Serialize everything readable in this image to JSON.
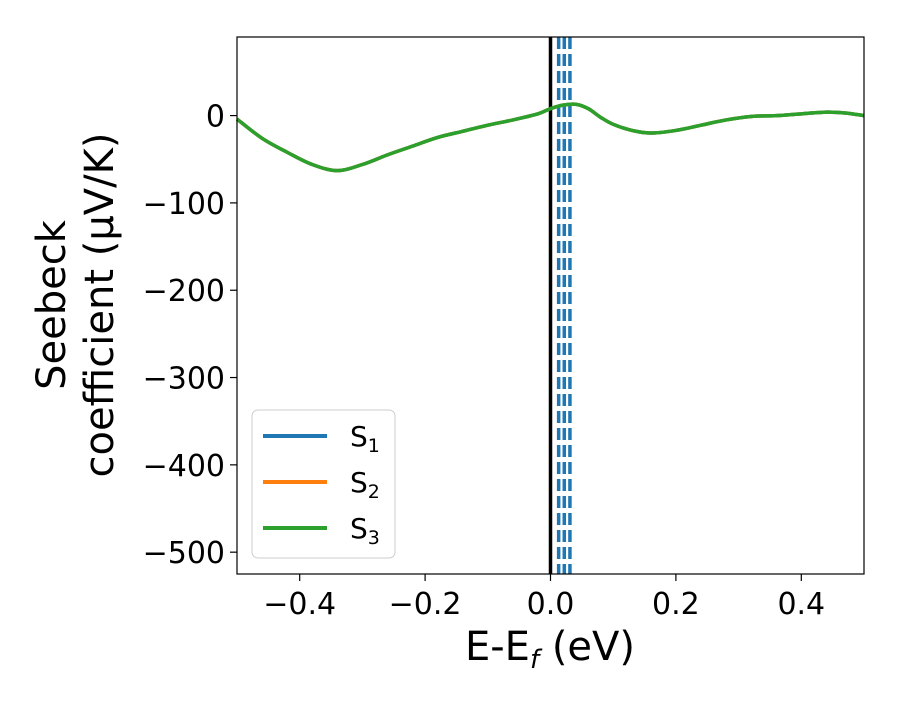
{
  "chart_data": {
    "type": "line",
    "title": "",
    "xlabel": "E-E",
    "xlabel_sub": "f",
    "xlabel_unit": " (eV)",
    "ylabel_line1": "Seebeck",
    "ylabel_line2": "coefficient  (μV/K)",
    "xlim": [
      -0.5,
      0.5
    ],
    "ylim": [
      -525,
      90
    ],
    "xticks": [
      -0.4,
      -0.2,
      0.0,
      0.2,
      0.4
    ],
    "xtick_labels": [
      "−0.4",
      "−0.2",
      "0.0",
      "0.2",
      "0.4"
    ],
    "yticks": [
      0,
      -100,
      -200,
      -300,
      -400,
      -500
    ],
    "ytick_labels": [
      "0",
      "−100",
      "−200",
      "−300",
      "−400",
      "−500"
    ],
    "grid": false,
    "legend_position": "lower-left",
    "fermi_line": {
      "x": 0.0,
      "color": "#000000"
    },
    "dashed_lines": {
      "x": [
        0.013,
        0.022,
        0.031
      ],
      "color": "#1f77b4"
    },
    "series": [
      {
        "name": "S",
        "sub": "1",
        "color": "#1f77b4",
        "x": [
          -0.5,
          -0.46,
          -0.42,
          -0.38,
          -0.34,
          -0.3,
          -0.26,
          -0.22,
          -0.18,
          -0.14,
          -0.1,
          -0.06,
          -0.02,
          0.0,
          0.02,
          0.04,
          0.06,
          0.08,
          0.1,
          0.13,
          0.16,
          0.2,
          0.24,
          0.28,
          0.32,
          0.36,
          0.4,
          0.44,
          0.47,
          0.5
        ],
        "values": [
          -4,
          -26,
          -42,
          -56,
          -63,
          -56,
          -45,
          -35,
          -25,
          -18,
          -11,
          -5,
          2,
          8,
          12,
          13,
          8,
          -2,
          -10,
          -17,
          -20,
          -17,
          -11,
          -5,
          -1,
          0,
          2,
          4,
          3,
          0
        ]
      },
      {
        "name": "S",
        "sub": "2",
        "color": "#ff7f0e",
        "x": [
          -0.5,
          -0.46,
          -0.42,
          -0.38,
          -0.34,
          -0.3,
          -0.26,
          -0.22,
          -0.18,
          -0.14,
          -0.1,
          -0.06,
          -0.02,
          0.0,
          0.02,
          0.04,
          0.06,
          0.08,
          0.1,
          0.13,
          0.16,
          0.2,
          0.24,
          0.28,
          0.32,
          0.36,
          0.4,
          0.44,
          0.47,
          0.5
        ],
        "values": [
          -4,
          -26,
          -42,
          -56,
          -63,
          -56,
          -45,
          -35,
          -25,
          -18,
          -11,
          -5,
          2,
          8,
          12,
          13,
          8,
          -2,
          -10,
          -17,
          -20,
          -17,
          -11,
          -5,
          -1,
          0,
          2,
          4,
          3,
          0
        ]
      },
      {
        "name": "S",
        "sub": "3",
        "color": "#2ca02c",
        "x": [
          -0.5,
          -0.46,
          -0.42,
          -0.38,
          -0.34,
          -0.3,
          -0.26,
          -0.22,
          -0.18,
          -0.14,
          -0.1,
          -0.06,
          -0.02,
          0.0,
          0.02,
          0.04,
          0.06,
          0.08,
          0.1,
          0.13,
          0.16,
          0.2,
          0.24,
          0.28,
          0.32,
          0.36,
          0.4,
          0.44,
          0.47,
          0.5
        ],
        "values": [
          -4,
          -26,
          -42,
          -56,
          -63,
          -56,
          -45,
          -35,
          -25,
          -18,
          -11,
          -5,
          2,
          8,
          12,
          13,
          8,
          -2,
          -10,
          -17,
          -20,
          -17,
          -11,
          -5,
          -1,
          0,
          2,
          4,
          3,
          0
        ]
      }
    ]
  }
}
